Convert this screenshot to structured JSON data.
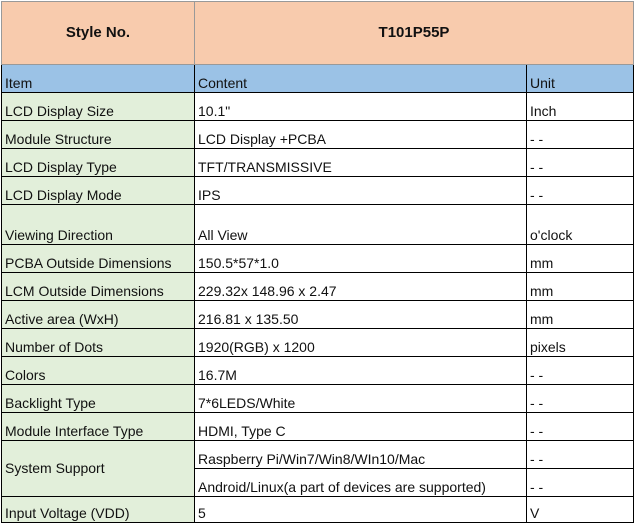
{
  "header": {
    "style_label": "Style No.",
    "style_value": "T101P55P"
  },
  "columns": {
    "item": "Item",
    "content": "Content",
    "unit": "Unit"
  },
  "rows": [
    {
      "item": "LCD Display Size",
      "content": "10.1\"",
      "unit": "Inch"
    },
    {
      "item": "Module Structure",
      "content": "LCD Display +PCBA",
      "unit": "- -"
    },
    {
      "item": "LCD Display Type",
      "content": "TFT/TRANSMISSIVE",
      "unit": "- -"
    },
    {
      "item": "LCD Display Mode",
      "content": "IPS",
      "unit": "- -"
    },
    {
      "item": "Viewing Direction",
      "content": "All View",
      "unit": "o'clock"
    },
    {
      "item": "PCBA Outside Dimensions",
      "content": "150.5*57*1.0",
      "unit": "mm"
    },
    {
      "item": "LCM Outside Dimensions",
      "content": "229.32x 148.96 x 2.47",
      "unit": "mm"
    },
    {
      "item": "Active area (WxH)",
      "content": "216.81 x 135.50",
      "unit": "mm"
    },
    {
      "item": "Number of Dots",
      "content": "1920(RGB) x 1200",
      "unit": "pixels"
    },
    {
      "item": "Colors",
      "content": "16.7M",
      "unit": "- -"
    },
    {
      "item": "Backlight Type",
      "content": "7*6LEDS/White",
      "unit": "- -"
    },
    {
      "item": "Module Interface Type",
      "content": "HDMI,  Type C",
      "unit": "- -"
    }
  ],
  "system_support": {
    "item": "System Support",
    "content1": "Raspberry Pi/Win7/Win8/WIn10/Mac",
    "unit1": "- -",
    "content2": "Android/Linux(a part of devices are supported)",
    "unit2": "- -"
  },
  "last": {
    "item": "Input Voltage (VDD)",
    "content": "5",
    "unit": "V"
  }
}
